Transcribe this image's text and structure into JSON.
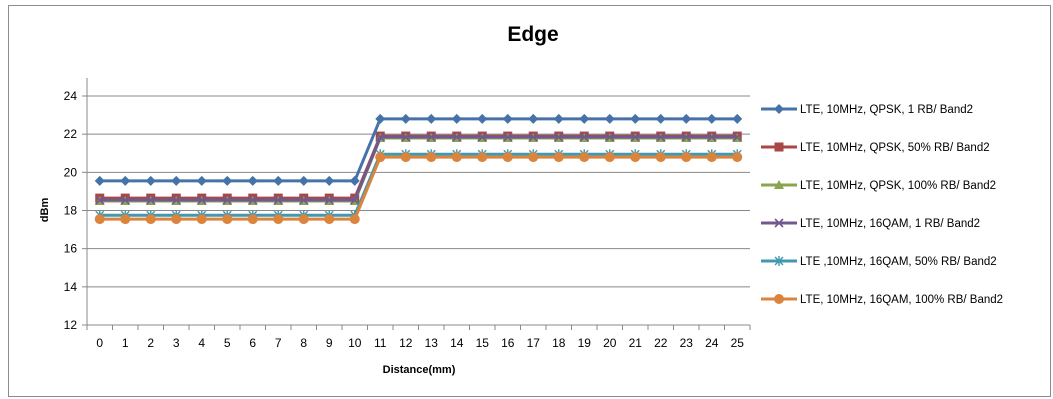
{
  "chart_data": {
    "type": "line",
    "title": "Edge",
    "xlabel": "Distance(mm)",
    "ylabel": "dBm",
    "ylim": [
      12,
      24
    ],
    "yticks": [
      12,
      14,
      16,
      18,
      20,
      22,
      24
    ],
    "grid": true,
    "legend_position": "right",
    "x": [
      0,
      1,
      2,
      3,
      4,
      5,
      6,
      7,
      8,
      9,
      10,
      11,
      12,
      13,
      14,
      15,
      16,
      17,
      18,
      19,
      20,
      21,
      22,
      23,
      24,
      25
    ],
    "series": [
      {
        "name": "LTE, 10MHz, QPSK, 1 RB/ Band2",
        "color": "#4572A7",
        "marker": "diamond",
        "values": [
          19.55,
          19.55,
          19.55,
          19.55,
          19.55,
          19.55,
          19.55,
          19.55,
          19.55,
          19.55,
          19.55,
          22.8,
          22.8,
          22.8,
          22.8,
          22.8,
          22.8,
          22.8,
          22.8,
          22.8,
          22.8,
          22.8,
          22.8,
          22.8,
          22.8,
          22.8
        ]
      },
      {
        "name": "LTE, 10MHz, QPSK, 50% RB/ Band2",
        "color": "#AA4643",
        "marker": "square",
        "values": [
          18.65,
          18.65,
          18.65,
          18.65,
          18.65,
          18.65,
          18.65,
          18.65,
          18.65,
          18.65,
          18.65,
          21.9,
          21.9,
          21.9,
          21.9,
          21.9,
          21.9,
          21.9,
          21.9,
          21.9,
          21.9,
          21.9,
          21.9,
          21.9,
          21.9,
          21.9
        ]
      },
      {
        "name": "LTE, 10MHz, QPSK, 100% RB/ Band2",
        "color": "#89A54E",
        "marker": "triangle",
        "values": [
          18.5,
          18.5,
          18.5,
          18.5,
          18.5,
          18.5,
          18.5,
          18.5,
          18.5,
          18.5,
          18.5,
          21.8,
          21.8,
          21.8,
          21.8,
          21.8,
          21.8,
          21.8,
          21.8,
          21.8,
          21.8,
          21.8,
          21.8,
          21.8,
          21.8,
          21.8
        ]
      },
      {
        "name": "LTE, 10MHz, 16QAM, 1 RB/ Band2",
        "color": "#71588F",
        "marker": "x",
        "values": [
          18.55,
          18.55,
          18.55,
          18.55,
          18.55,
          18.55,
          18.55,
          18.55,
          18.55,
          18.55,
          18.55,
          21.85,
          21.85,
          21.85,
          21.85,
          21.85,
          21.85,
          21.85,
          21.85,
          21.85,
          21.85,
          21.85,
          21.85,
          21.85,
          21.85,
          21.85
        ]
      },
      {
        "name": "LTE ,10MHz, 16QAM, 50% RB/ Band2",
        "color": "#4198AF",
        "marker": "star",
        "values": [
          17.75,
          17.75,
          17.75,
          17.75,
          17.75,
          17.75,
          17.75,
          17.75,
          17.75,
          17.75,
          17.75,
          20.95,
          20.95,
          20.95,
          20.95,
          20.95,
          20.95,
          20.95,
          20.95,
          20.95,
          20.95,
          20.95,
          20.95,
          20.95,
          20.95,
          20.95
        ]
      },
      {
        "name": "LTE, 10MHz, 16QAM, 100% RB/ Band2",
        "color": "#DB843D",
        "marker": "circle",
        "values": [
          17.55,
          17.55,
          17.55,
          17.55,
          17.55,
          17.55,
          17.55,
          17.55,
          17.55,
          17.55,
          17.55,
          20.8,
          20.8,
          20.8,
          20.8,
          20.8,
          20.8,
          20.8,
          20.8,
          20.8,
          20.8,
          20.8,
          20.8,
          20.8,
          20.8,
          20.8
        ]
      }
    ]
  }
}
